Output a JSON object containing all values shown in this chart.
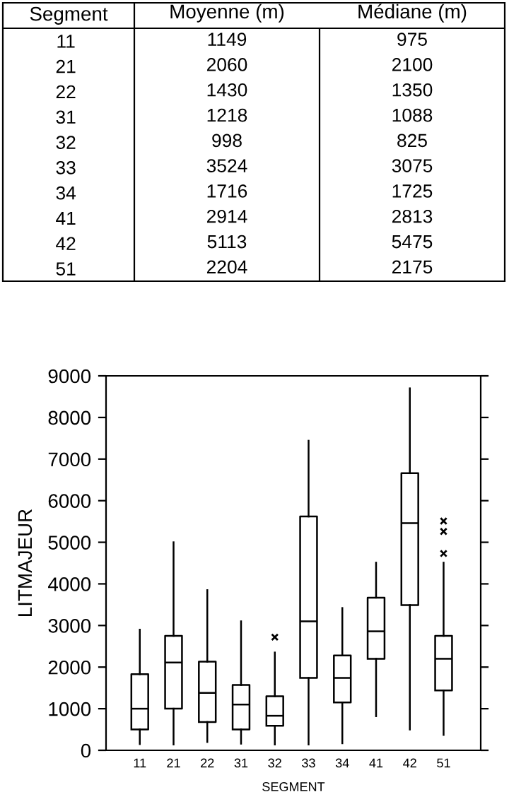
{
  "chart_data": [
    {
      "type": "heatmap",
      "ylabel": "Segment",
      "categories": [
        "Moyenne (m)",
        "Médiane (m)"
      ],
      "y_categories": [
        "11",
        "21",
        "22",
        "31",
        "32",
        "33",
        "34",
        "41",
        "42",
        "51"
      ],
      "cells": [
        [
          1149,
          975
        ],
        [
          2060,
          2100
        ],
        [
          1430,
          1350
        ],
        [
          1218,
          1088
        ],
        [
          998,
          825
        ],
        [
          3524,
          3075
        ],
        [
          1716,
          1725
        ],
        [
          2914,
          2813
        ],
        [
          5113,
          5475
        ],
        [
          2204,
          2175
        ]
      ],
      "data_labels": true
    },
    {
      "type": "box",
      "xlabel": "SEGMENT",
      "ylabel": "LITMAJEUR",
      "categories": [
        "11",
        "21",
        "22",
        "31",
        "32",
        "33",
        "34",
        "41",
        "42",
        "51"
      ],
      "ylim": [
        0,
        9000
      ],
      "yticks": [
        0,
        1000,
        2000,
        3000,
        4000,
        5000,
        6000,
        7000,
        8000,
        9000
      ],
      "grid": false,
      "marker": "cross",
      "boxes": [
        {
          "low": 150,
          "q1": 500,
          "median": 1000,
          "q3": 1830,
          "high": 2900
        },
        {
          "low": 140,
          "q1": 1000,
          "median": 2110,
          "q3": 2750,
          "high": 5000
        },
        {
          "low": 200,
          "q1": 680,
          "median": 1380,
          "q3": 2130,
          "high": 3850
        },
        {
          "low": 160,
          "q1": 500,
          "median": 1100,
          "q3": 1570,
          "high": 3100
        },
        {
          "low": 140,
          "q1": 590,
          "median": 830,
          "q3": 1300,
          "high": 2350,
          "outliers": [
            2720
          ]
        },
        {
          "low": 140,
          "q1": 1740,
          "median": 3100,
          "q3": 5620,
          "high": 7440
        },
        {
          "low": 170,
          "q1": 1150,
          "median": 1740,
          "q3": 2280,
          "high": 3420
        },
        {
          "low": 820,
          "q1": 2200,
          "median": 2860,
          "q3": 3670,
          "high": 4510
        },
        {
          "low": 500,
          "q1": 3490,
          "median": 5460,
          "q3": 6660,
          "high": 8700
        },
        {
          "low": 370,
          "q1": 1440,
          "median": 2200,
          "q3": 2750,
          "high": 4510,
          "outliers": [
            4730,
            5260,
            5510
          ]
        }
      ]
    }
  ]
}
